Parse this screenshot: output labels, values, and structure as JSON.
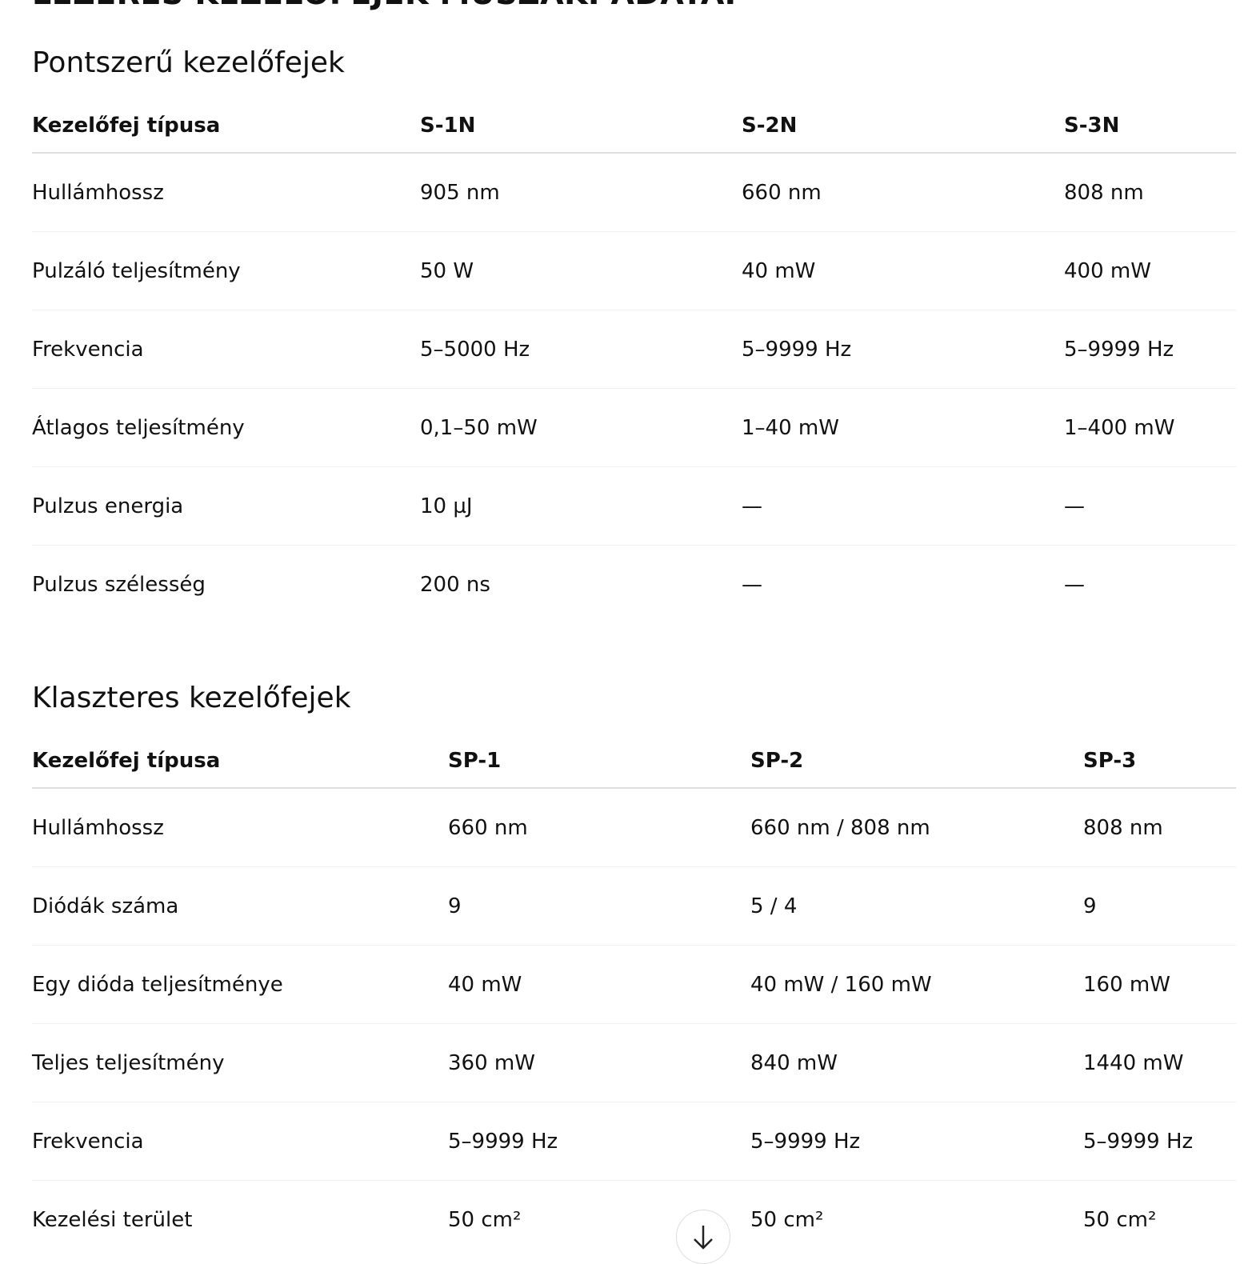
{
  "page_title": "LÉZERES KEZELŐFEJEK MŰSZAKI ADATAI",
  "sections": [
    {
      "title": "Pontszerű kezelőfejek",
      "headers": [
        "Kezelőfej típusa",
        "S-1N",
        "S-2N",
        "S-3N"
      ],
      "rows": [
        [
          "Hullámhossz",
          "905 nm",
          "660 nm",
          "808 nm"
        ],
        [
          "Pulzáló teljesítmény",
          "50 W",
          "40 mW",
          "400 mW"
        ],
        [
          "Frekvencia",
          "5–5000 Hz",
          "5–9999 Hz",
          "5–9999 Hz"
        ],
        [
          "Átlagos teljesítmény",
          "0,1–50 mW",
          "1–40 mW",
          "1–400 mW"
        ],
        [
          "Pulzus energia",
          "10 µJ",
          "—",
          "—"
        ],
        [
          "Pulzus szélesség",
          "200 ns",
          "—",
          "—"
        ]
      ]
    },
    {
      "title": "Klaszteres kezelőfejek",
      "headers": [
        "Kezelőfej típusa",
        "SP-1",
        "SP-2",
        "SP-3"
      ],
      "rows": [
        [
          "Hullámhossz",
          "660 nm",
          "660 nm / 808 nm",
          "808 nm"
        ],
        [
          "Diódák száma",
          "9",
          "5 / 4",
          "9"
        ],
        [
          "Egy dióda teljesítménye",
          "40 mW",
          "40 mW / 160 mW",
          "160 mW"
        ],
        [
          "Teljes teljesítmény",
          "360 mW",
          "840 mW",
          "1440 mW"
        ],
        [
          "Frekvencia",
          "5–9999 Hz",
          "5–9999 Hz",
          "5–9999 Hz"
        ],
        [
          "Kezelési terület",
          "50 cm²",
          "50 cm²",
          "50 cm²"
        ]
      ]
    }
  ],
  "scroll_button_icon": "arrow-down-icon"
}
